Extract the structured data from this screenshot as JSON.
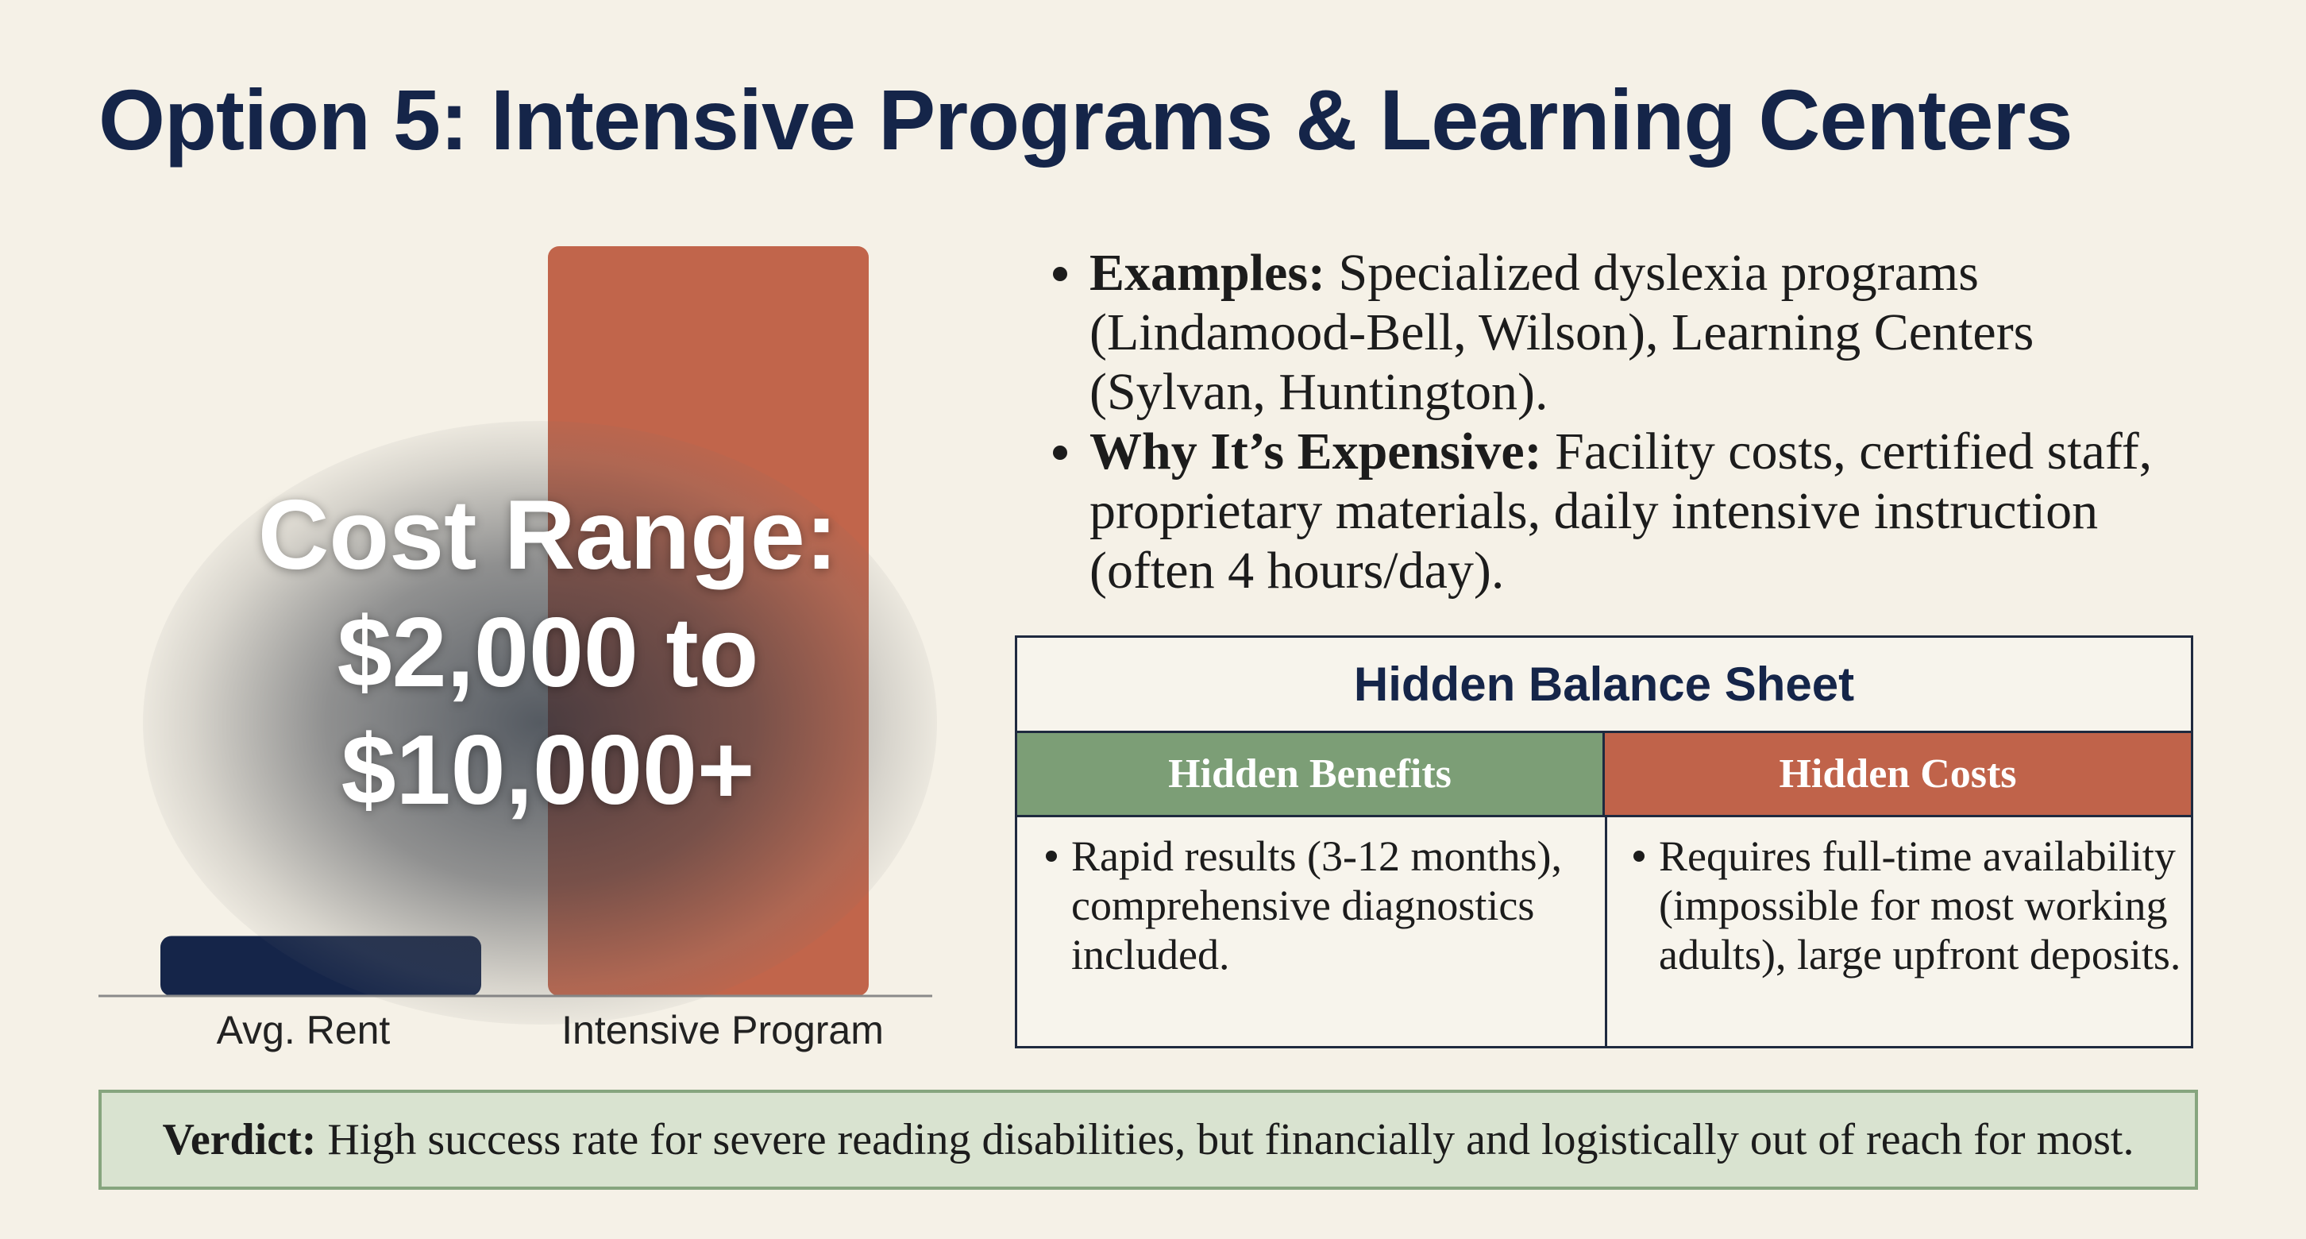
{
  "title": "Option 5: Intensive Programs & Learning Centers",
  "chart_data": {
    "type": "bar",
    "categories": [
      "Avg. Rent",
      "Intensive Program"
    ],
    "values": [
      8,
      100
    ],
    "ylim": [
      0,
      100
    ],
    "colors": [
      "#152549",
      "#c1654b"
    ],
    "overlay_text": [
      "Cost Range:",
      "$2,000 to",
      "$10,000+"
    ]
  },
  "bullets": [
    {
      "label": "Examples:",
      "text": "Specialized dyslexia programs (Lindamood-Bell, Wilson), Learning Centers (Sylvan, Huntington)."
    },
    {
      "label": "Why It’s Expensive:",
      "text": "Facility costs, certified staff, proprietary materials, daily intensive instruction (often 4 hours/day)."
    }
  ],
  "balance_sheet": {
    "title": "Hidden Balance Sheet",
    "benefits_header": "Hidden Benefits",
    "costs_header": "Hidden Costs",
    "benefits_text": "Rapid results (3-12 months), comprehensive diagnostics included.",
    "costs_text": "Requires full-time availability (impossible for most working adults), large upfront deposits.",
    "benefits_color": "#7c9e76",
    "costs_color": "#c0634a"
  },
  "verdict": {
    "label": "Verdict:",
    "text": "High success rate for severe reading disabilities, but financially and logistically out of reach for most."
  }
}
